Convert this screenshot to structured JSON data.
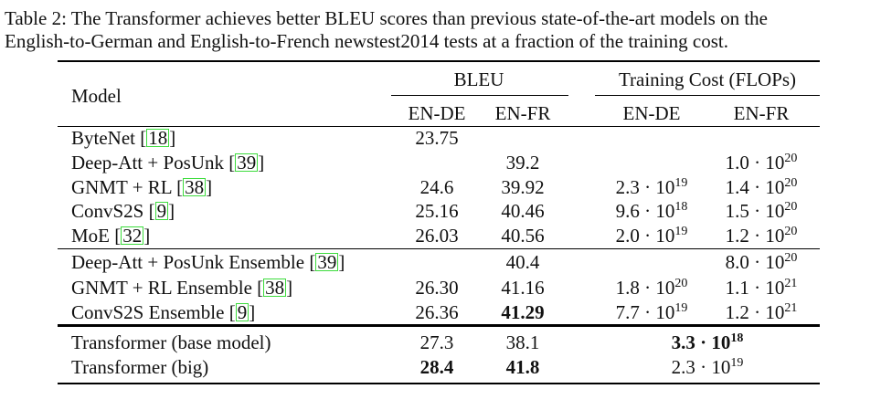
{
  "caption": {
    "line1": "Table 2: The Transformer achieves better BLEU scores than previous state-of-the-art models on the",
    "line2": "English-to-German and English-to-French newstest2014 tests at a fraction of the training cost."
  },
  "header": {
    "model": "Model",
    "bleu": "BLEU",
    "cost": "Training Cost (FLOPs)",
    "bleu_ende": "EN-DE",
    "bleu_enfr": "EN-FR",
    "cost_ende": "EN-DE",
    "cost_enfr": "EN-FR"
  },
  "rows": [
    {
      "model": "ByteNet",
      "cite": "18",
      "ende": "23.75",
      "enfr": "",
      "cost_ende": null,
      "cost_enfr": null
    },
    {
      "model": "Deep-Att + PosUnk",
      "cite": "39",
      "ende": "",
      "enfr": "39.2",
      "cost_ende": null,
      "cost_enfr": {
        "m": "1.0",
        "e": "20"
      }
    },
    {
      "model": "GNMT + RL",
      "cite": "38",
      "ende": "24.6",
      "enfr": "39.92",
      "cost_ende": {
        "m": "2.3",
        "e": "19"
      },
      "cost_enfr": {
        "m": "1.4",
        "e": "20"
      }
    },
    {
      "model": "ConvS2S",
      "cite": "9",
      "ende": "25.16",
      "enfr": "40.46",
      "cost_ende": {
        "m": "9.6",
        "e": "18"
      },
      "cost_enfr": {
        "m": "1.5",
        "e": "20"
      }
    },
    {
      "model": "MoE",
      "cite": "32",
      "ende": "26.03",
      "enfr": "40.56",
      "cost_ende": {
        "m": "2.0",
        "e": "19"
      },
      "cost_enfr": {
        "m": "1.2",
        "e": "20"
      }
    },
    {
      "model": "Deep-Att + PosUnk Ensemble",
      "cite": "39",
      "ende": "",
      "enfr": "40.4",
      "cost_ende": null,
      "cost_enfr": {
        "m": "8.0",
        "e": "20"
      }
    },
    {
      "model": "GNMT + RL Ensemble",
      "cite": "38",
      "ende": "26.30",
      "enfr": "41.16",
      "cost_ende": {
        "m": "1.8",
        "e": "20"
      },
      "cost_enfr": {
        "m": "1.1",
        "e": "21"
      }
    },
    {
      "model": "ConvS2S Ensemble",
      "cite": "9",
      "ende": "26.36",
      "enfr": "41.29",
      "enfr_bold": true,
      "cost_ende": {
        "m": "7.7",
        "e": "19"
      },
      "cost_enfr": {
        "m": "1.2",
        "e": "21"
      }
    },
    {
      "model": "Transformer (base model)",
      "cite": "",
      "ende": "27.3",
      "enfr": "38.1",
      "cost_span": {
        "m": "3.3",
        "e": "18"
      },
      "cost_bold": true
    },
    {
      "model": "Transformer (big)",
      "cite": "",
      "ende": "28.4",
      "ende_bold": true,
      "enfr": "41.8",
      "enfr_bold": true,
      "cost_span": {
        "m": "2.3",
        "e": "19"
      }
    }
  ]
}
